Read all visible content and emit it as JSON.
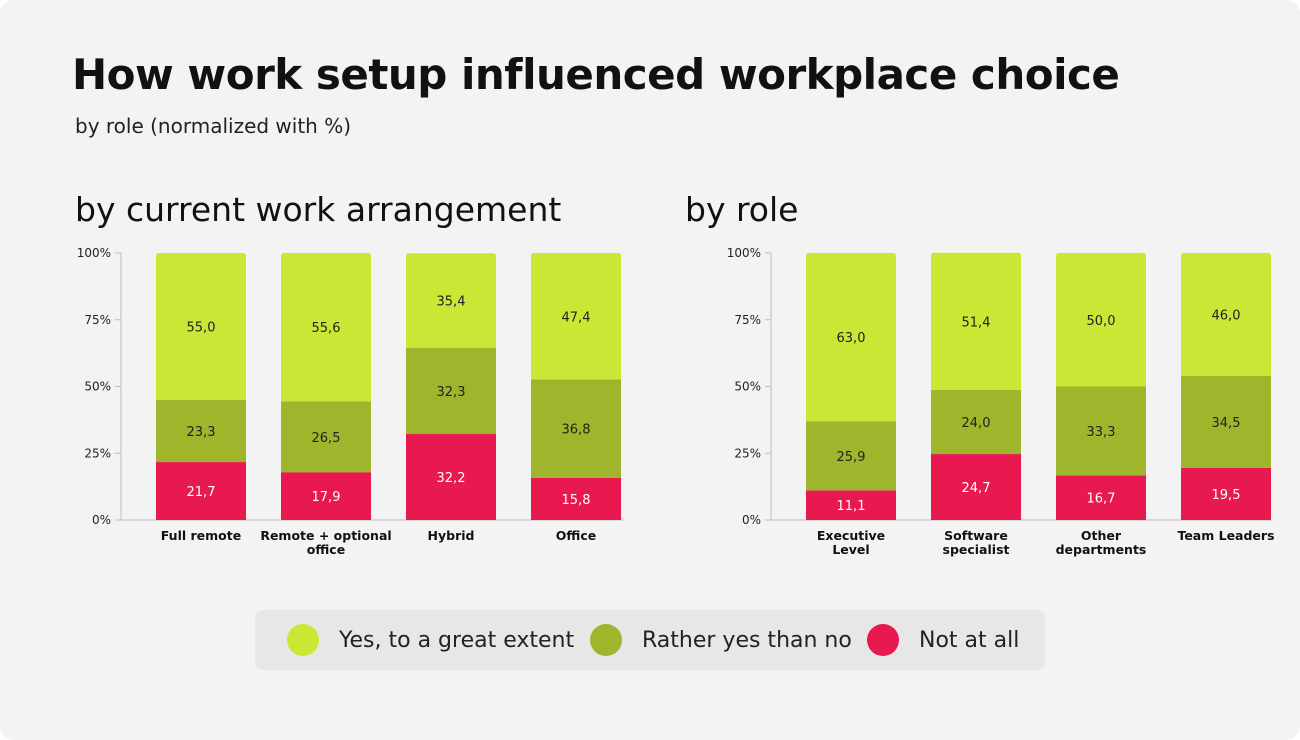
{
  "title": "How work setup influenced workplace choice",
  "subtitle": "by role (normalized with %)",
  "colors": {
    "yes_great": "#cbe634",
    "rather_yes": "#9fb52b",
    "not_at_all": "#e8194f"
  },
  "legend": [
    {
      "label": "Yes, to a great extent",
      "color": "#cbe634"
    },
    {
      "label": "Rather yes than no",
      "color": "#9fb52b"
    },
    {
      "label": "Not at all",
      "color": "#e8194f"
    }
  ],
  "chart_data": [
    {
      "type": "bar",
      "stacked": true,
      "title": "by current work arrangement",
      "categories": [
        [
          "Full remote"
        ],
        [
          "Remote + optional",
          "office"
        ],
        [
          "Hybrid"
        ],
        [
          "Office"
        ]
      ],
      "yticks": [
        "0%",
        "25%",
        "50%",
        "75%",
        "100%"
      ],
      "ylim": [
        0,
        100
      ],
      "series": [
        {
          "name": "Not at all",
          "values": [
            21.7,
            17.9,
            32.2,
            15.8
          ],
          "labels": [
            "21,7",
            "17,9",
            "32,2",
            "15,8"
          ]
        },
        {
          "name": "Rather yes than no",
          "values": [
            23.3,
            26.5,
            32.3,
            36.8
          ],
          "labels": [
            "23,3",
            "26,5",
            "32,3",
            "36,8"
          ]
        },
        {
          "name": "Yes, to a great extent",
          "values": [
            55.0,
            55.6,
            35.4,
            47.4
          ],
          "labels": [
            "55,0",
            "55,6",
            "35,4",
            "47,4"
          ]
        }
      ]
    },
    {
      "type": "bar",
      "stacked": true,
      "title": "by role",
      "categories": [
        [
          "Executive",
          "Level"
        ],
        [
          "Software",
          "specialist"
        ],
        [
          "Other",
          "departments"
        ],
        [
          "Team Leaders"
        ]
      ],
      "yticks": [
        "0%",
        "25%",
        "50%",
        "75%",
        "100%"
      ],
      "ylim": [
        0,
        100
      ],
      "series": [
        {
          "name": "Not at all",
          "values": [
            11.1,
            24.7,
            16.7,
            19.5
          ],
          "labels": [
            "11,1",
            "24,7",
            "16,7",
            "19,5"
          ]
        },
        {
          "name": "Rather yes than no",
          "values": [
            25.9,
            24.0,
            33.3,
            34.5
          ],
          "labels": [
            "25,9",
            "24,0",
            "33,3",
            "34,5"
          ]
        },
        {
          "name": "Yes, to a great extent",
          "values": [
            63.0,
            51.4,
            50.0,
            46.0
          ],
          "labels": [
            "63,0",
            "51,4",
            "50,0",
            "46,0"
          ]
        }
      ]
    }
  ]
}
